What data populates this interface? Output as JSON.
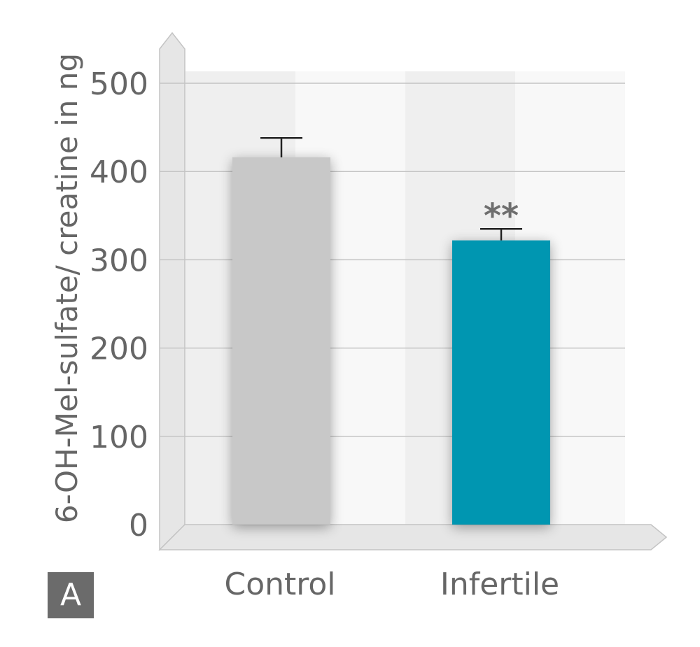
{
  "chart_data": {
    "type": "bar",
    "categories": [
      "Control",
      "Infertile"
    ],
    "values": [
      416,
      322
    ],
    "errors": [
      22,
      13
    ],
    "annotations": [
      "",
      "**"
    ],
    "bar_colors": [
      "#c8c8c8",
      "#0096b1"
    ],
    "ylabel": "6-OH-Mel-sulfate/ creatine in ng",
    "ylim": [
      0,
      500
    ],
    "yticks": [
      0,
      100,
      200,
      300,
      400,
      500
    ],
    "grid": true
  },
  "panel_label": "A"
}
